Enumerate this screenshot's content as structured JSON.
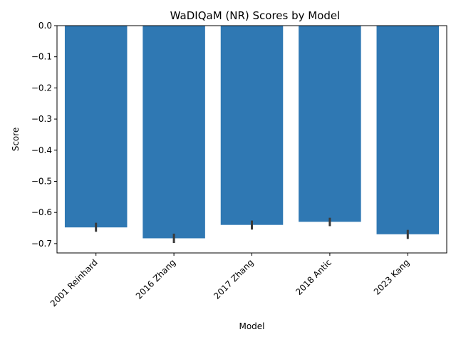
{
  "chart_data": {
    "type": "bar",
    "title": "WaDIQaM (NR) Scores by Model",
    "xlabel": "Model",
    "ylabel": "Score",
    "categories": [
      "2001 Reinhard",
      "2016 Zhang",
      "2017 Zhang",
      "2018 Antic",
      "2023 Kang"
    ],
    "values": [
      -0.648,
      -0.683,
      -0.64,
      -0.63,
      -0.67
    ],
    "error_low": [
      -0.662,
      -0.698,
      -0.655,
      -0.644,
      -0.685
    ],
    "error_high": [
      -0.633,
      -0.668,
      -0.626,
      -0.617,
      -0.656
    ],
    "ylim": [
      -0.73,
      0.0
    ],
    "yticks": [
      0.0,
      -0.1,
      -0.2,
      -0.3,
      -0.4,
      -0.5,
      -0.6,
      -0.7
    ],
    "ytick_labels": [
      "0.0",
      "−0.1",
      "−0.2",
      "−0.3",
      "−0.4",
      "−0.5",
      "−0.6",
      "−0.7"
    ],
    "bar_color": "#2f78b3",
    "error_color": "#3a3a3a",
    "grid": false,
    "legend": "none"
  }
}
